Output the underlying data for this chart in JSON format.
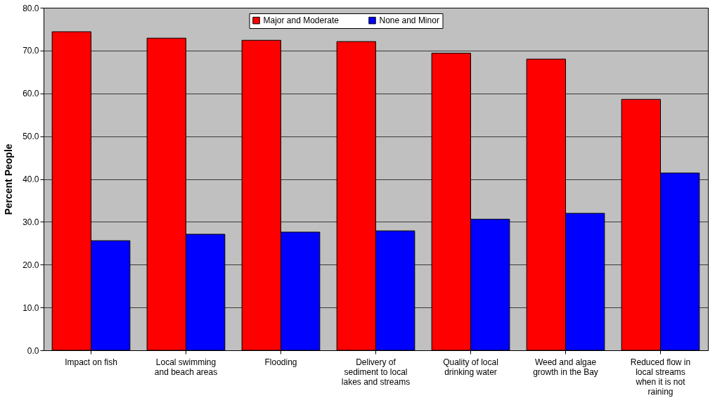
{
  "chart_data": {
    "type": "bar",
    "ylabel": "Percent People",
    "categories": [
      "Impact on fish",
      "Local swimming and beach areas",
      "Flooding",
      "Delivery of sediment to local lakes and streams",
      "Quality of local drinking water",
      "Weed and algae growth in the Bay",
      "Reduced flow in local streams when it is not raining"
    ],
    "series": [
      {
        "name": "Major and Moderate",
        "color": "#ff0000",
        "values": [
          74.4,
          72.9,
          72.4,
          72.1,
          69.4,
          68.0,
          58.6
        ]
      },
      {
        "name": "None and Minor",
        "color": "#0000ff",
        "values": [
          25.6,
          27.1,
          27.6,
          27.9,
          30.6,
          32.0,
          41.4
        ]
      }
    ],
    "ylim": [
      0,
      80
    ],
    "yticks": [
      {
        "value": 0,
        "label": "0.0"
      },
      {
        "value": 10,
        "label": "10.0"
      },
      {
        "value": 20,
        "label": "20.0"
      },
      {
        "value": 30,
        "label": "30.0"
      },
      {
        "value": 40,
        "label": "40.0"
      },
      {
        "value": 50,
        "label": "50.0"
      },
      {
        "value": 60,
        "label": "60.0"
      },
      {
        "value": 70,
        "label": "70.0"
      },
      {
        "value": 80,
        "label": "80.0"
      }
    ],
    "grid": "y",
    "legend": "top"
  }
}
